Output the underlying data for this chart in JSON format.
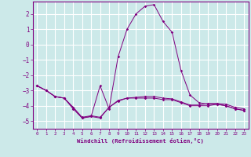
{
  "xlabel": "Windchill (Refroidissement éolien,°C)",
  "x": [
    0,
    1,
    2,
    3,
    4,
    5,
    6,
    7,
    8,
    9,
    10,
    11,
    12,
    13,
    14,
    15,
    16,
    17,
    18,
    19,
    20,
    21,
    22,
    23
  ],
  "line1": [
    -2.7,
    -3.0,
    -3.4,
    -3.5,
    -4.2,
    -4.8,
    -4.7,
    -2.7,
    -4.2,
    -0.8,
    1.0,
    2.0,
    2.5,
    2.6,
    1.5,
    0.8,
    -1.7,
    -3.3,
    -3.8,
    -3.9,
    -3.9,
    -4.0,
    -4.2,
    -4.3
  ],
  "line2": [
    -2.7,
    -3.0,
    -3.4,
    -3.5,
    -4.1,
    -4.75,
    -4.65,
    -4.75,
    -4.1,
    -3.65,
    -3.5,
    -3.45,
    -3.4,
    -3.4,
    -3.5,
    -3.55,
    -3.75,
    -3.95,
    -3.95,
    -3.85,
    -3.85,
    -3.9,
    -4.1,
    -4.2
  ],
  "line3": [
    -2.7,
    -3.0,
    -3.4,
    -3.5,
    -4.1,
    -4.8,
    -4.7,
    -4.8,
    -4.1,
    -3.7,
    -3.5,
    -3.5,
    -3.5,
    -3.5,
    -3.6,
    -3.6,
    -3.8,
    -4.0,
    -4.0,
    -4.0,
    -3.9,
    -4.0,
    -4.2,
    -4.3
  ],
  "line_color": "#800080",
  "bg_color": "#cce9e9",
  "grid_color": "#b0d8d8",
  "ylim": [
    -5.5,
    2.8
  ],
  "yticks": [
    -5,
    -4,
    -3,
    -2,
    -1,
    0,
    1,
    2
  ],
  "xticks": [
    0,
    1,
    2,
    3,
    4,
    5,
    6,
    7,
    8,
    9,
    10,
    11,
    12,
    13,
    14,
    15,
    16,
    17,
    18,
    19,
    20,
    21,
    22,
    23
  ]
}
